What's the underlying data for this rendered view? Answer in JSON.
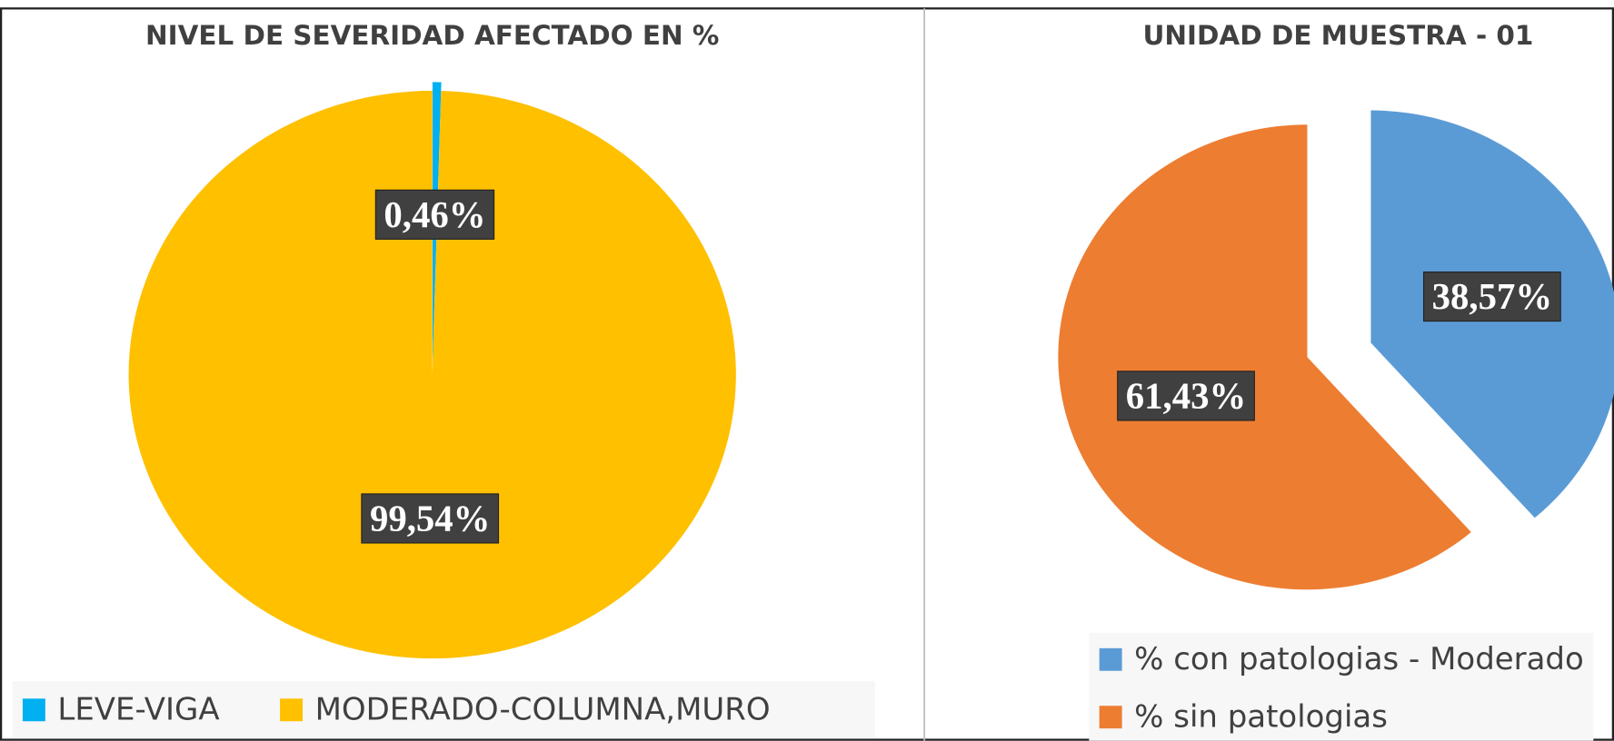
{
  "chart_data": [
    {
      "type": "pie",
      "title": "NIVEL DE SEVERIDAD AFECTADO EN %",
      "categories": [
        "LEVE-VIGA",
        "MODERADO-COLUMNA,MURO"
      ],
      "values": [
        0.46,
        99.54
      ],
      "value_labels": [
        "0,46%",
        "99,54%"
      ],
      "colors": [
        "#00b0f0",
        "#ffc000"
      ]
    },
    {
      "type": "pie",
      "title": "UNIDAD DE MUESTRA - 01",
      "categories": [
        "% con patologias - Moderado",
        "% sin patologias"
      ],
      "values": [
        38.57,
        61.43
      ],
      "value_labels": [
        "38,57%",
        "61,43%"
      ],
      "colors": [
        "#5b9bd5",
        "#ed7d31"
      ]
    }
  ]
}
